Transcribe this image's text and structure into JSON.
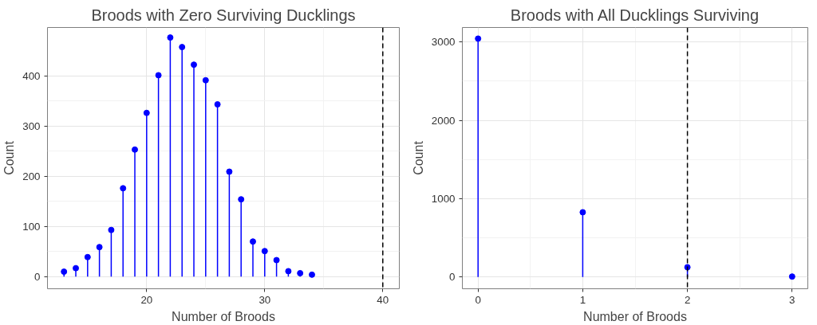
{
  "chart_data": [
    {
      "type": "lollipop",
      "title": "Broods with Zero Surviving Ducklings",
      "xlabel": "Number of Broods",
      "ylabel": "Count",
      "x": [
        13,
        14,
        15,
        16,
        17,
        18,
        19,
        20,
        21,
        22,
        23,
        24,
        25,
        26,
        27,
        28,
        29,
        30,
        31,
        32,
        33,
        34
      ],
      "series": [
        {
          "color": "#0000ff",
          "values": [
            10,
            17,
            39,
            59,
            93,
            176,
            253,
            326,
            401,
            476,
            457,
            422,
            391,
            343,
            209,
            154,
            70,
            51,
            33,
            11,
            7,
            4
          ]
        }
      ],
      "xlim": [
        11.6,
        41.4
      ],
      "xticks": [
        20,
        30,
        40
      ],
      "ylim": [
        -24,
        496
      ],
      "yticks": [
        0,
        100,
        200,
        300,
        400
      ],
      "ref_lines": [
        {
          "axis": "x",
          "value": 40,
          "color": "#000000",
          "line_style": "dashed"
        }
      ],
      "grid": true,
      "marker": "circle"
    },
    {
      "type": "lollipop",
      "title": "Broods with All Ducklings Surviving",
      "xlabel": "Number of Broods",
      "ylabel": "Count",
      "x": [
        0,
        1,
        2,
        3
      ],
      "series": [
        {
          "color": "#0000ff",
          "values": [
            3043,
            826,
            124,
            5
          ]
        }
      ],
      "xlim": [
        -0.15,
        3.15
      ],
      "xticks": [
        0,
        1,
        2,
        3
      ],
      "ylim": [
        -151,
        3185
      ],
      "yticks": [
        0,
        1000,
        2000,
        3000
      ],
      "ref_lines": [
        {
          "axis": "x",
          "value": 2,
          "color": "#000000",
          "line_style": "dashed"
        }
      ],
      "grid": true,
      "marker": "circle"
    }
  ]
}
